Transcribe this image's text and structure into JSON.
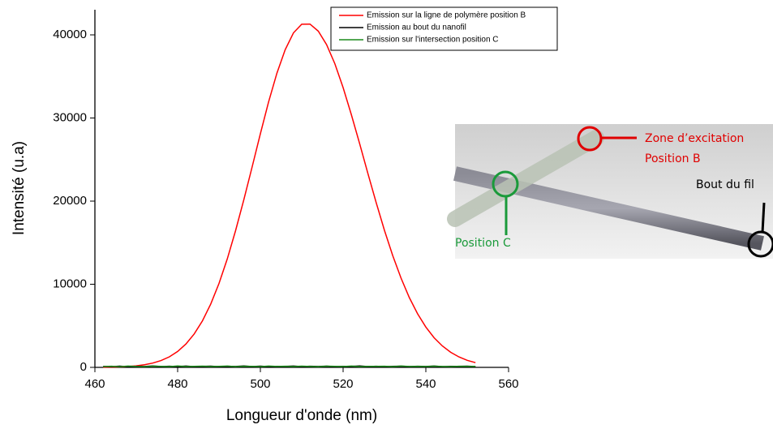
{
  "chart_data": {
    "type": "line",
    "xlabel": "Longueur d'onde (nm)",
    "ylabel": "Intensité (u.a)",
    "x": [
      462,
      464,
      466,
      468,
      470,
      472,
      474,
      476,
      478,
      480,
      482,
      484,
      486,
      488,
      490,
      492,
      494,
      496,
      498,
      500,
      502,
      504,
      506,
      508,
      510,
      512,
      514,
      516,
      518,
      520,
      522,
      524,
      526,
      528,
      530,
      532,
      534,
      536,
      538,
      540,
      542,
      544,
      546,
      548,
      550,
      552
    ],
    "series": [
      {
        "name": "Emission sur la ligne de polymère position B",
        "color": "#ff0000",
        "values": [
          19,
          35,
          63,
          111,
          190,
          318,
          518,
          821,
          1271,
          1912,
          2811,
          4016,
          5603,
          7618,
          10100,
          13041,
          16436,
          20162,
          24095,
          28111,
          31961,
          35397,
          38212,
          40240,
          41276,
          41295,
          40447,
          38834,
          36536,
          33658,
          30388,
          26910,
          23308,
          19810,
          16477,
          13443,
          10743,
          8404,
          6446,
          4844,
          3565,
          2575,
          1817,
          1263,
          853,
          567
        ]
      },
      {
        "name": "Emission au bout du nanofil",
        "color": "#000000",
        "values": [
          120,
          90,
          150,
          80,
          130,
          110,
          170,
          95,
          140,
          100,
          160,
          85,
          125,
          150,
          90,
          135,
          110,
          175,
          100,
          145,
          90,
          130,
          120,
          160,
          95,
          140,
          105,
          150,
          85,
          130,
          115,
          165,
          100,
          140,
          90,
          125,
          150,
          95,
          135,
          110,
          155,
          90,
          130,
          120,
          145,
          100
        ]
      },
      {
        "name": "Emission sur l'intersection position C",
        "color": "#1a8a1a",
        "values": [
          100,
          140,
          80,
          160,
          110,
          90,
          150,
          120,
          85,
          165,
          100,
          130,
          145,
          95,
          120,
          160,
          85,
          140,
          115,
          90,
          155,
          105,
          135,
          95,
          150,
          110,
          80,
          145,
          125,
          100,
          160,
          90,
          130,
          115,
          140,
          85,
          155,
          105,
          120,
          95,
          150,
          110,
          90,
          140,
          125,
          105
        ]
      }
    ],
    "xlim": [
      460,
      560
    ],
    "xticks": [
      460,
      480,
      500,
      520,
      540,
      560
    ],
    "ylim": [
      0,
      40000
    ],
    "yticks": [
      0,
      10000,
      20000,
      30000,
      40000
    ],
    "annotations": [
      "Zone d’excitation",
      "Position B",
      "Bout du fil",
      "Position C"
    ]
  }
}
